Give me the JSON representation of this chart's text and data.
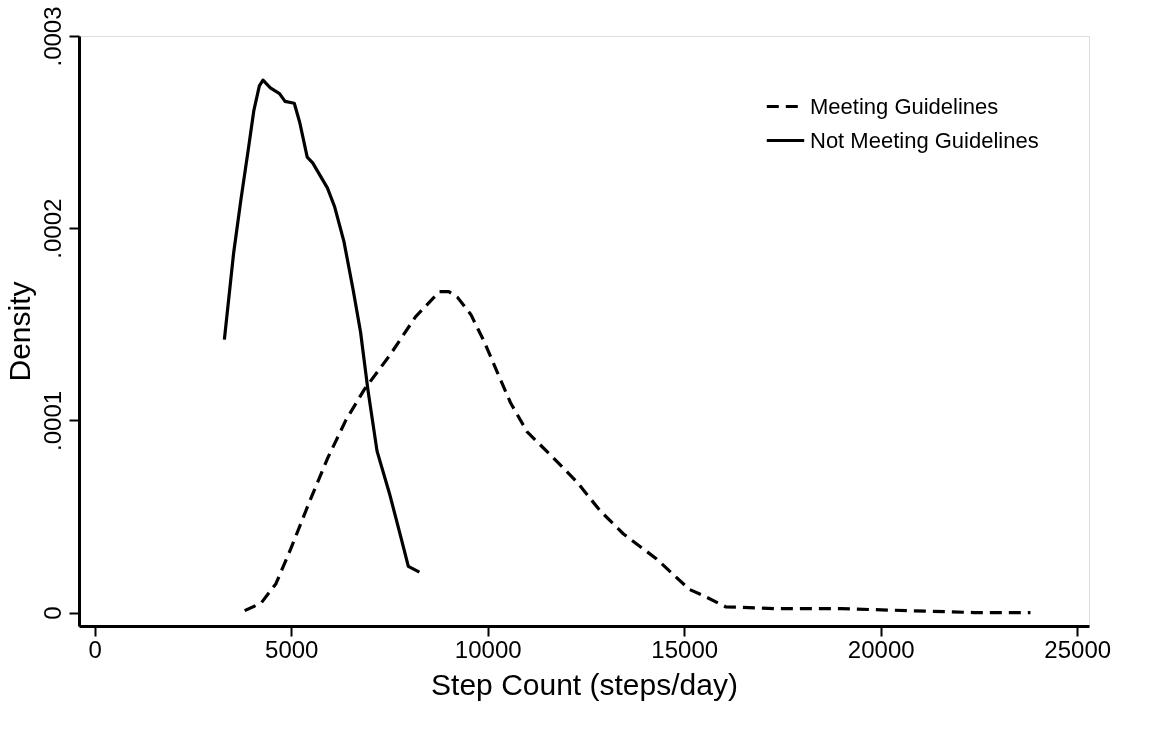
{
  "chart_data": {
    "type": "line",
    "xlabel": "Step Count (steps/day)",
    "ylabel": "Density",
    "xlim": [
      -400,
      25300
    ],
    "xticks": [
      0,
      5000,
      10000,
      15000,
      20000,
      25000
    ],
    "ylim": [
      -7e-06,
      0.0003
    ],
    "yticks": [
      0,
      {
        "value": 0.0001,
        "label": ".0001"
      },
      {
        "value": 0.0002,
        "label": ".0002"
      },
      {
        "value": 0.0003,
        "label": ".0003"
      }
    ],
    "grid": false,
    "legend": "top right",
    "series": [
      {
        "name": "Meeting Guidelines",
        "color": "#000000",
        "line_style": "dashed",
        "x": [
          3815,
          4237,
          4611,
          4985,
          5452,
          5920,
          6388,
          6858,
          7513,
          8167,
          8771,
          9009,
          9232,
          9573,
          9910,
          10245,
          10584,
          11004,
          11595,
          12268,
          12859,
          13448,
          14290,
          15134,
          15470,
          16052,
          17316,
          19009,
          20695,
          22370,
          23811
        ],
        "values": [
          1e-06,
          5e-06,
          1.5e-05,
          3.3e-05,
          5.7e-05,
          8e-05,
          0.0001,
          0.000116,
          0.000134,
          0.000154,
          0.000167,
          0.000167,
          0.000164,
          0.000155,
          0.000141,
          0.000125,
          0.000109,
          9.4e-05,
          8.2e-05,
          6.8e-05,
          5.3e-05,
          4.1e-05,
          2.8e-05,
          1.2e-05,
          9e-06,
          3e-06,
          2e-06,
          2e-06,
          1e-06,
          0.0,
          0.0
        ]
      },
      {
        "name": "Not Meeting Guidelines",
        "color": "#000000",
        "line_style": "solid",
        "x": [
          3299,
          3534,
          3721,
          3908,
          4047,
          4189,
          4282,
          4469,
          4702,
          4843,
          5078,
          5217,
          5407,
          5546,
          5920,
          6107,
          6342,
          6575,
          6764,
          6951,
          7184,
          7513,
          7793,
          7980,
          8261
        ],
        "values": [
          0.000142,
          0.000187,
          0.000215,
          0.000241,
          0.000261,
          0.000274,
          0.000277,
          0.000273,
          0.00027,
          0.000266,
          0.000265,
          0.000255,
          0.000237,
          0.000234,
          0.000221,
          0.000211,
          0.000193,
          0.000168,
          0.000146,
          0.000116,
          8.4e-05,
          6.1e-05,
          3.9e-05,
          2.4e-05,
          2.1e-05
        ]
      }
    ]
  }
}
